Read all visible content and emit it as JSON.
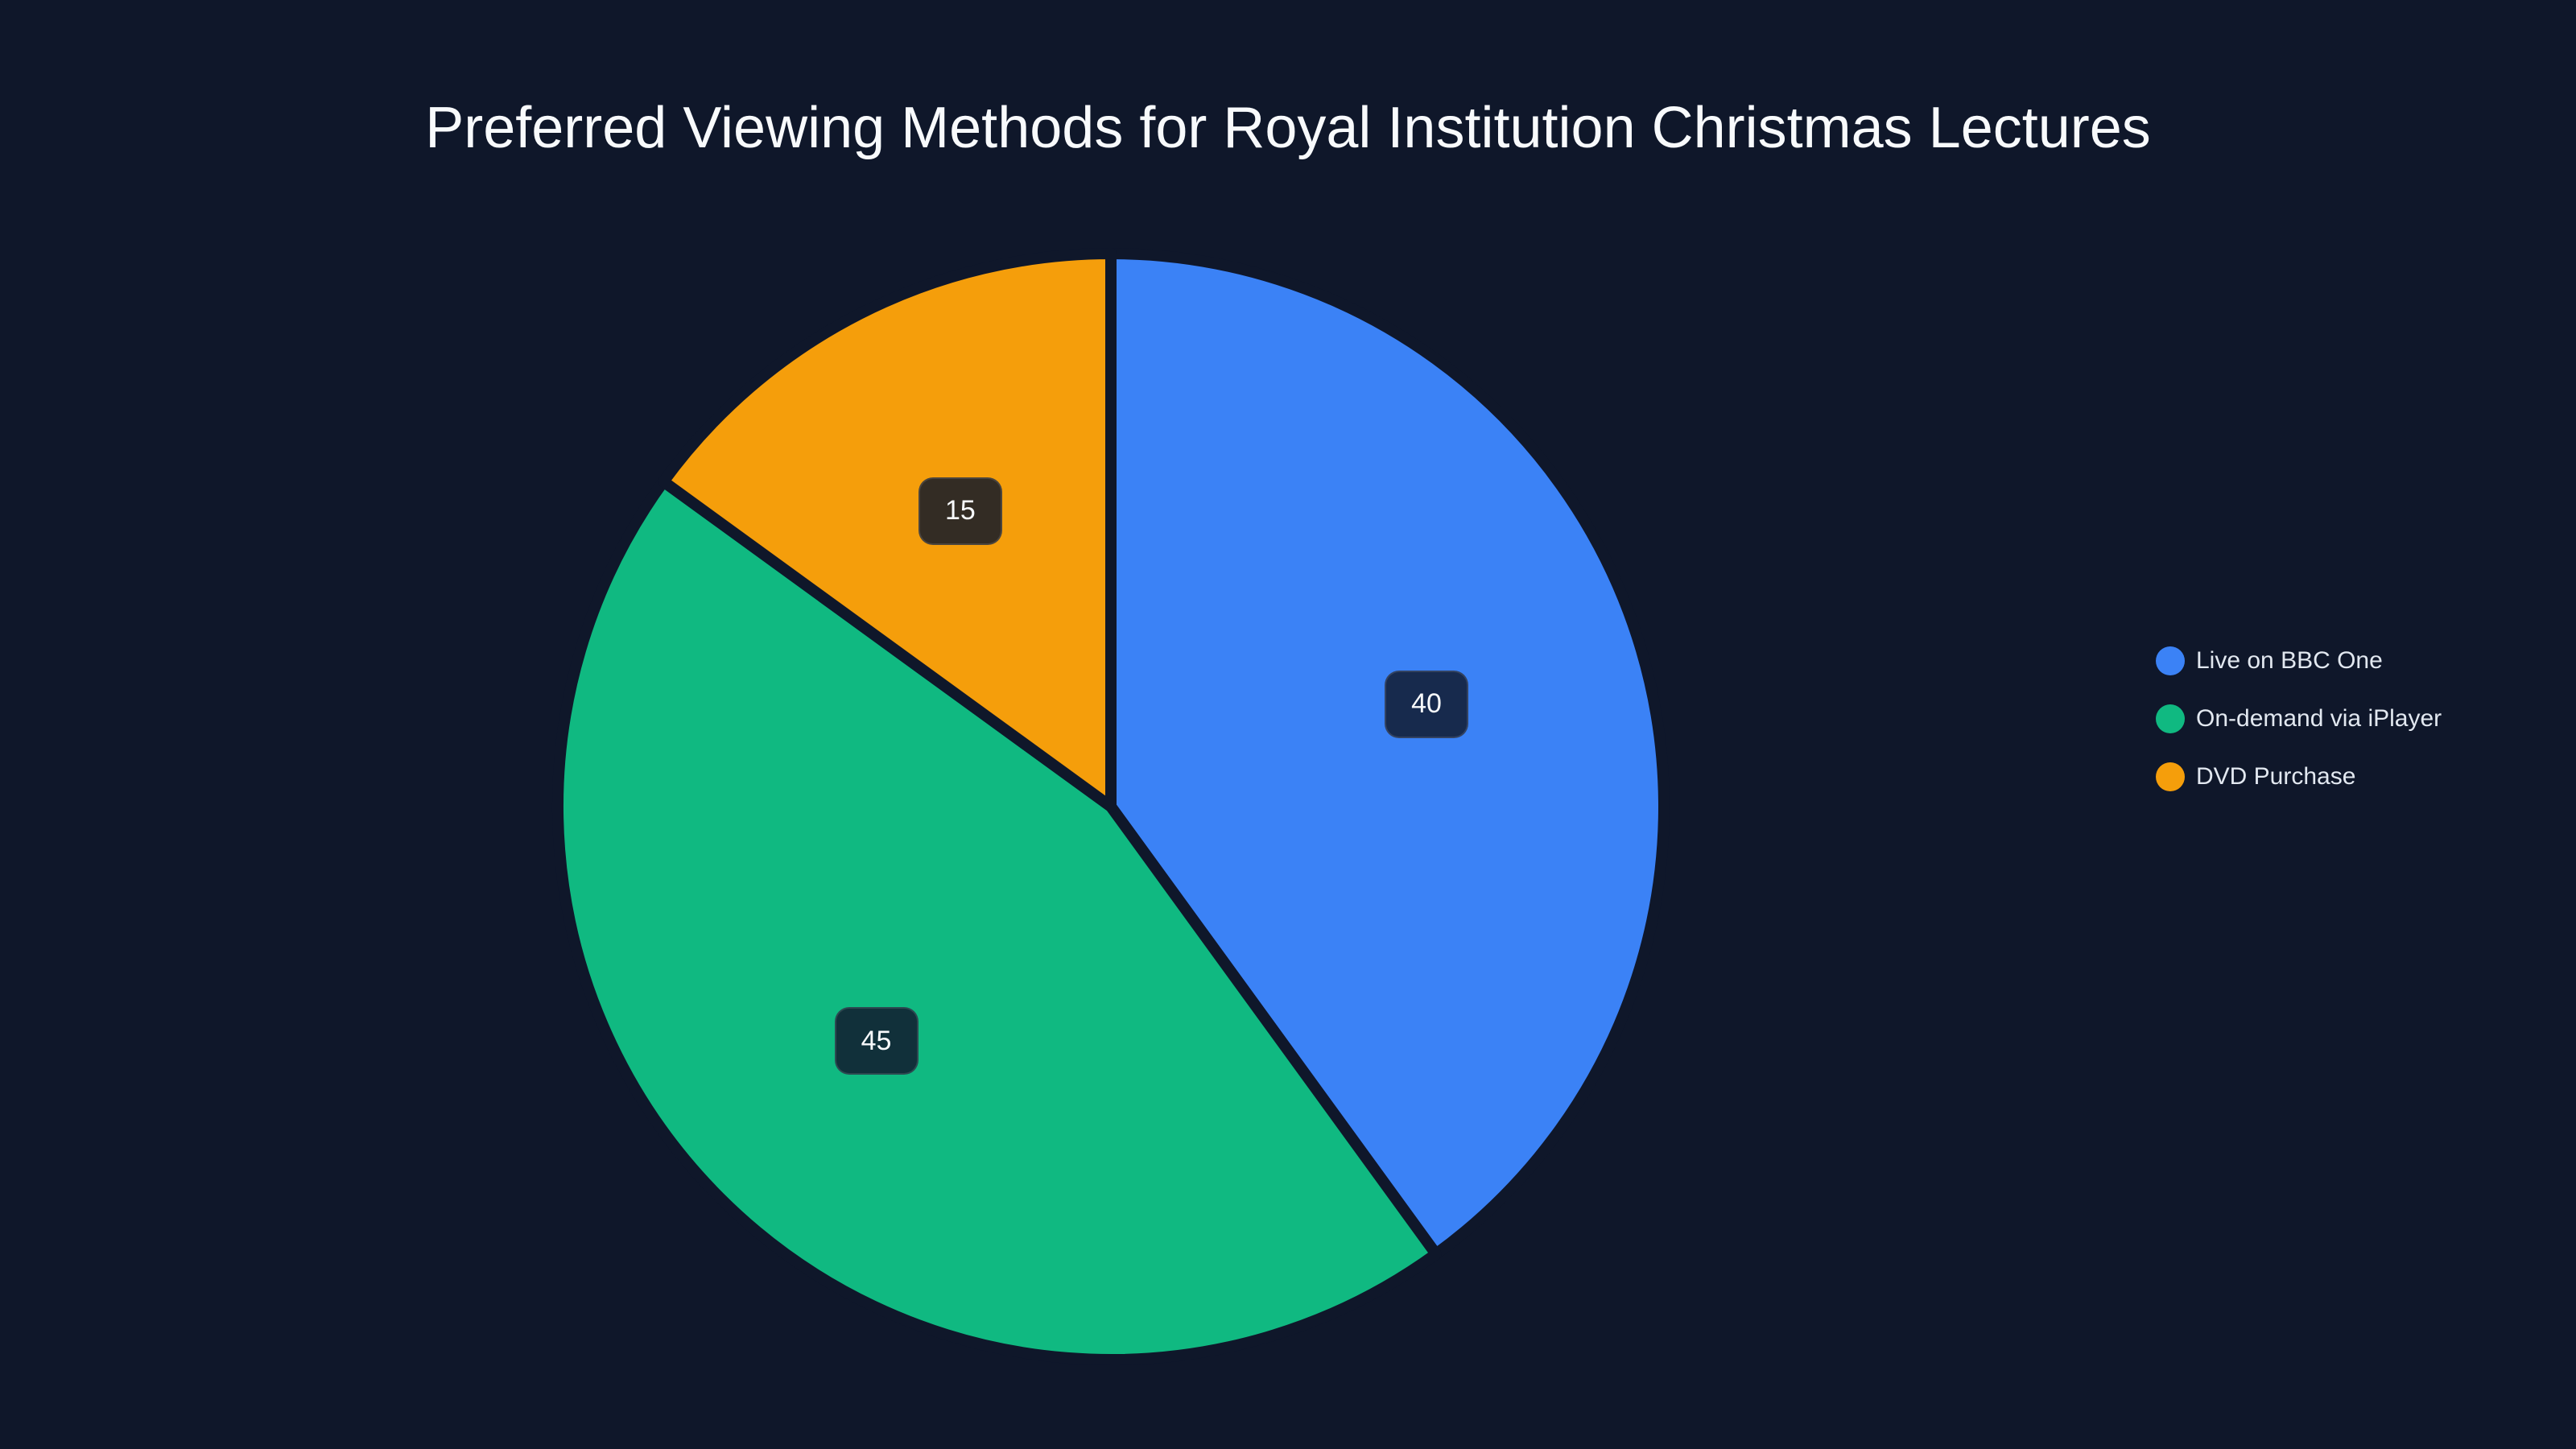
{
  "chart_data": {
    "type": "pie",
    "title": "Preferred Viewing Methods for Royal Institution Christmas Lectures",
    "categories": [
      "Live on BBC One",
      "On-demand via iPlayer",
      "DVD Purchase"
    ],
    "values": [
      40,
      45,
      15
    ],
    "colors": [
      "#3b82f6",
      "#10b981",
      "#f59e0b"
    ],
    "start_angle_deg": 90,
    "direction": "clockwise",
    "data_labels": [
      "40",
      "45",
      "15"
    ],
    "legend_position": "right",
    "xlabel": "",
    "ylabel": ""
  },
  "title": "Preferred Viewing Methods for Royal Institution Christmas Lectures",
  "slices": [
    {
      "label": "Live on BBC One",
      "value": 40,
      "value_text": "40",
      "color": "#3b82f6",
      "label_bg": "#172a4d"
    },
    {
      "label": "On-demand via iPlayer",
      "value": 45,
      "value_text": "45",
      "color": "#10b981",
      "label_bg": "#11303a"
    },
    {
      "label": "DVD Purchase",
      "value": 15,
      "value_text": "15",
      "color": "#f59e0b",
      "label_bg": "#332c24"
    }
  ],
  "legend": {
    "items": [
      {
        "label": "Live on BBC One",
        "color": "#3b82f6"
      },
      {
        "label": "On-demand via iPlayer",
        "color": "#10b981"
      },
      {
        "label": "DVD Purchase",
        "color": "#f59e0b"
      }
    ]
  },
  "theme": {
    "background": "#0f172a",
    "text": "#f8fafc"
  }
}
